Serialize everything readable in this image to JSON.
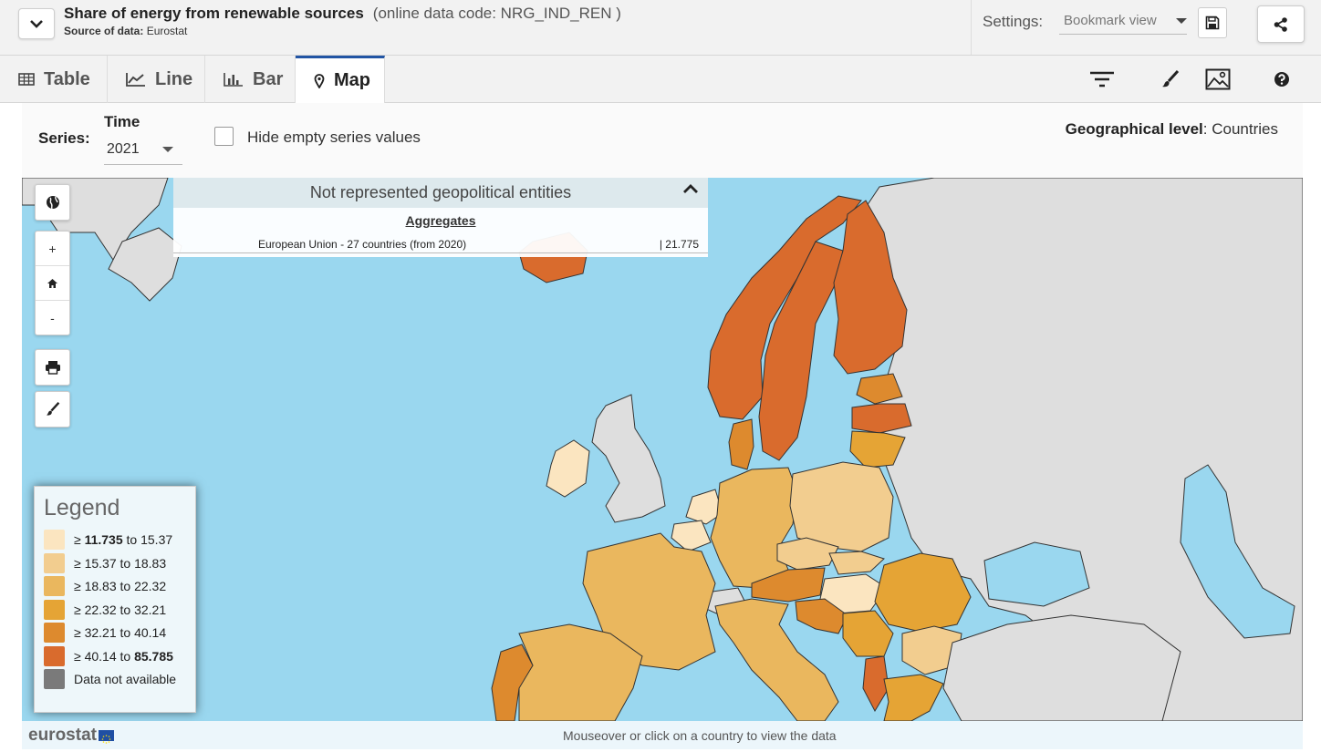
{
  "header": {
    "title": "Share of energy from renewable sources",
    "code_text": "(online data code: NRG_IND_REN )",
    "source_label": "Source of data:",
    "source_value": "Eurostat",
    "settings_label": "Settings:",
    "bookmark_view": "Bookmark view"
  },
  "tabs": [
    {
      "label": "Table",
      "icon": "table-icon"
    },
    {
      "label": "Line",
      "icon": "line-chart-icon"
    },
    {
      "label": "Bar",
      "icon": "bar-chart-icon"
    },
    {
      "label": "Map",
      "icon": "map-pin-icon",
      "active": true
    }
  ],
  "filters": {
    "series_label": "Series:",
    "time_label": "Time",
    "time_value": "2021",
    "hide_empty_label": "Hide empty series values",
    "hide_empty_checked": false,
    "geo_level_label": "Geographical level",
    "geo_level_value": ": Countries"
  },
  "not_represented": {
    "title": "Not represented geopolitical entities",
    "aggregates_label": "Aggregates",
    "name": "European Union - 27 countries (from 2020)",
    "value": "| 21.775"
  },
  "legend": {
    "title": "Legend",
    "items": [
      {
        "prefix": "≥ ",
        "low": "11.735",
        "high": "15.37",
        "low_bold": true,
        "high_bold": false,
        "color": "#fbe5c0"
      },
      {
        "prefix": "≥ ",
        "low": "15.37",
        "high": "18.83",
        "low_bold": false,
        "high_bold": false,
        "color": "#f2cd8f"
      },
      {
        "prefix": "≥ ",
        "low": "18.83",
        "high": "22.32",
        "low_bold": false,
        "high_bold": false,
        "color": "#eab75e"
      },
      {
        "prefix": "≥ ",
        "low": "22.32",
        "high": "32.21",
        "low_bold": false,
        "high_bold": false,
        "color": "#e5a435"
      },
      {
        "prefix": "≥ ",
        "low": "32.21",
        "high": "40.14",
        "low_bold": false,
        "high_bold": false,
        "color": "#dd8a2e"
      },
      {
        "prefix": "≥ ",
        "low": "40.14",
        "high": "85.785",
        "low_bold": false,
        "high_bold": true,
        "color": "#d96b2d"
      }
    ],
    "na_label": "Data not available",
    "na_color": "#7a7a7a",
    "to_word": " to "
  },
  "footer": {
    "logo": "eurostat",
    "message": "Mouseover or click on a country to view the data"
  },
  "colors": {
    "sea": "#9ad7ef",
    "non_eu_land": "#dedede",
    "accent": "#2255a4"
  }
}
